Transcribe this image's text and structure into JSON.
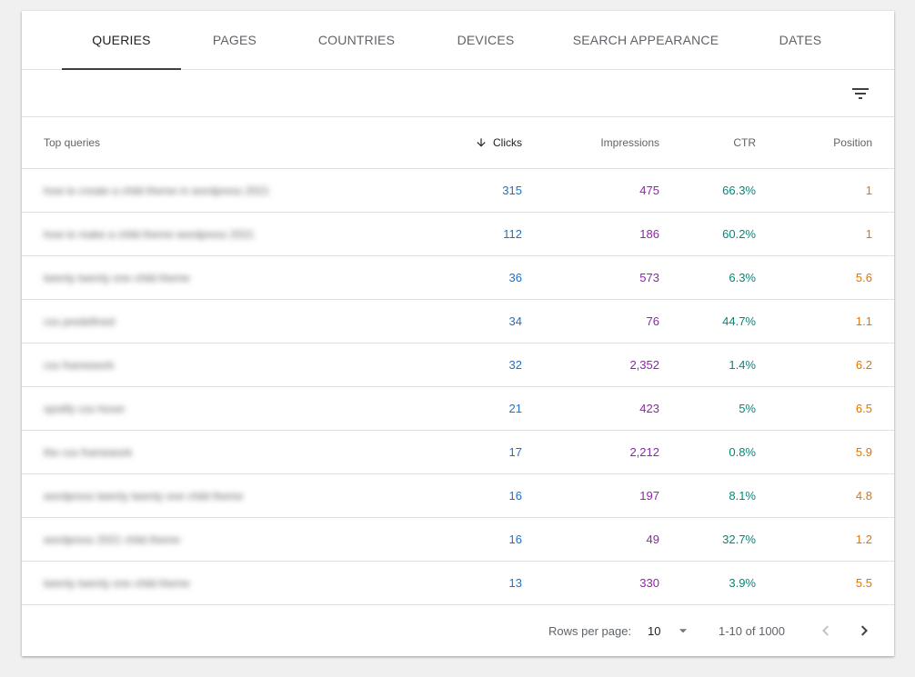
{
  "tabs": [
    {
      "label": "QUERIES",
      "active": true
    },
    {
      "label": "PAGES",
      "active": false
    },
    {
      "label": "COUNTRIES",
      "active": false
    },
    {
      "label": "DEVICES",
      "active": false
    },
    {
      "label": "SEARCH APPEARANCE",
      "active": false
    },
    {
      "label": "DATES",
      "active": false
    }
  ],
  "filter": {
    "icon": "filter-list-icon"
  },
  "table": {
    "headers": {
      "query": "Top queries",
      "clicks": "Clicks",
      "impressions": "Impressions",
      "ctr": "CTR",
      "position": "Position"
    },
    "sort": {
      "column": "clicks",
      "direction": "descending",
      "icon": "arrow-down-icon"
    },
    "rows": [
      {
        "query": "how to create a child theme in wordpress 2021",
        "clicks": "315",
        "impressions": "475",
        "ctr": "66.3%",
        "position": "1"
      },
      {
        "query": "how to make a child theme wordpress 2021",
        "clicks": "112",
        "impressions": "186",
        "ctr": "60.2%",
        "position": "1"
      },
      {
        "query": "twenty twenty one child theme",
        "clicks": "36",
        "impressions": "573",
        "ctr": "6.3%",
        "position": "5.6"
      },
      {
        "query": "css predefined",
        "clicks": "34",
        "impressions": "76",
        "ctr": "44.7%",
        "position": "1.1"
      },
      {
        "query": "css framework",
        "clicks": "32",
        "impressions": "2,352",
        "ctr": "1.4%",
        "position": "6.2"
      },
      {
        "query": "spotify css hover",
        "clicks": "21",
        "impressions": "423",
        "ctr": "5%",
        "position": "6.5"
      },
      {
        "query": "the css framework",
        "clicks": "17",
        "impressions": "2,212",
        "ctr": "0.8%",
        "position": "5.9"
      },
      {
        "query": "wordpress twenty twenty one child theme",
        "clicks": "16",
        "impressions": "197",
        "ctr": "8.1%",
        "position": "4.8"
      },
      {
        "query": "wordpress 2021 child theme",
        "clicks": "16",
        "impressions": "49",
        "ctr": "32.7%",
        "position": "1.2"
      },
      {
        "query": "twenty twenty one child theme",
        "clicks": "13",
        "impressions": "330",
        "ctr": "3.9%",
        "position": "5.5"
      }
    ]
  },
  "pagination": {
    "rows_per_page_label": "Rows per page:",
    "rows_per_page_value": "10",
    "range_text": "1-10 of 1000"
  },
  "colors": {
    "clicks": "#1e70c9",
    "impressions": "#8e24aa",
    "ctr": "#00897b",
    "position": "#e37400"
  }
}
